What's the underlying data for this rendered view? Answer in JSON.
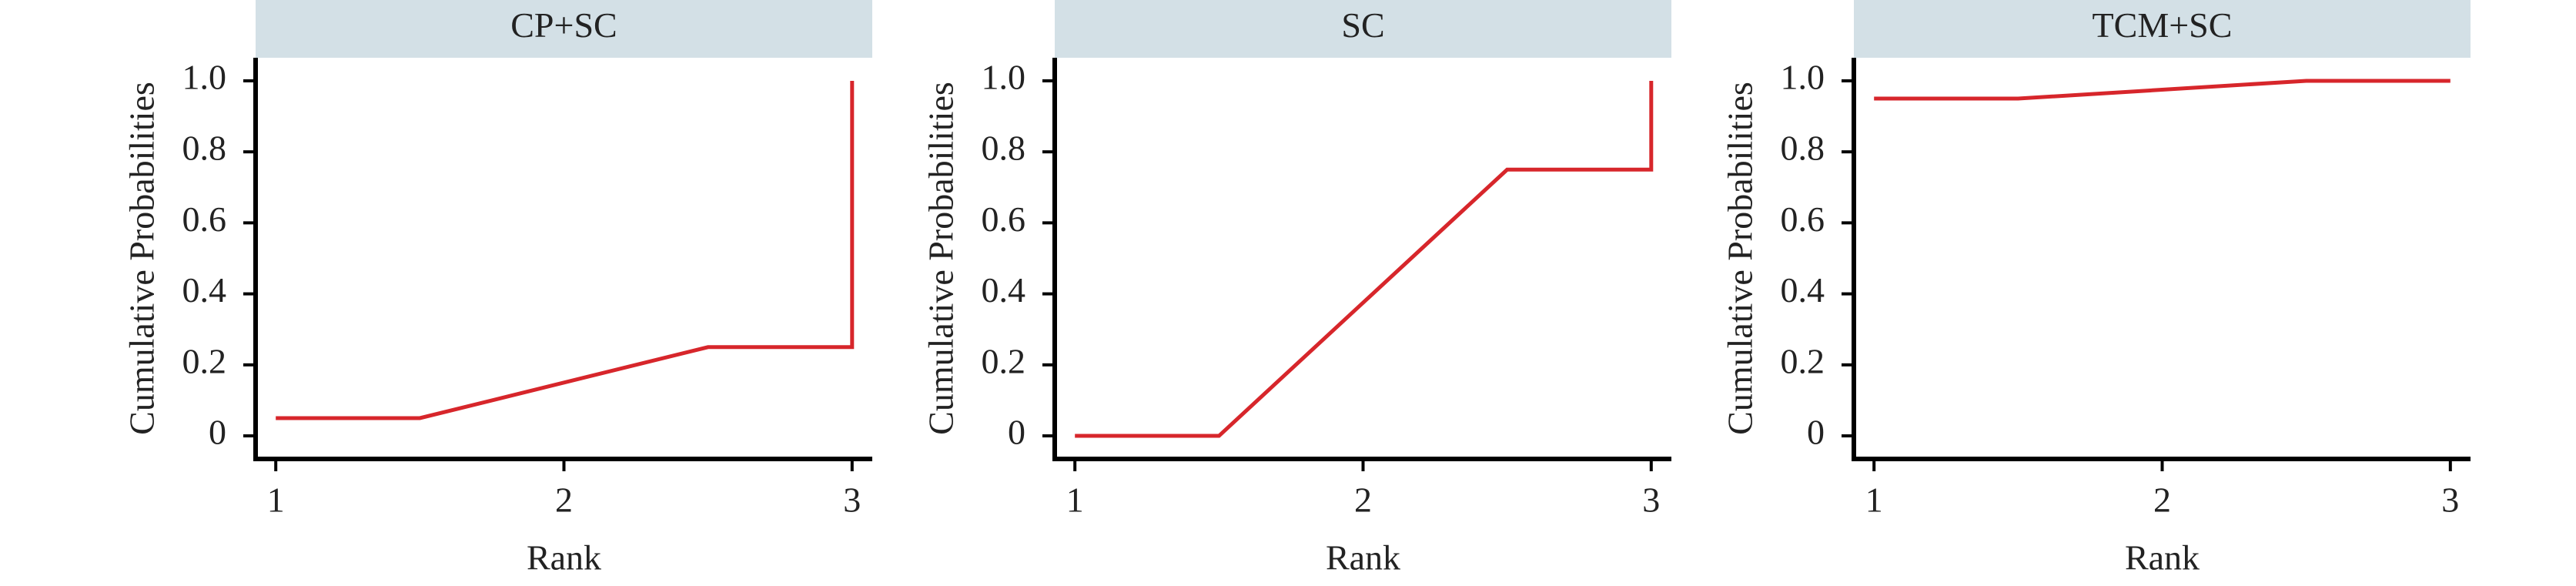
{
  "chart_data": [
    {
      "type": "line",
      "title": "CP+SC",
      "xlabel": "Rank",
      "ylabel": "Cumulative Probabilities",
      "x": [
        1,
        1.5,
        2.5,
        3,
        3
      ],
      "values": [
        0.05,
        0.05,
        0.25,
        0.25,
        1.0
      ],
      "color": "#d7262b",
      "xlim": [
        0.93,
        3.07
      ],
      "ylim": [
        -0.065,
        1.065
      ],
      "xticks": [
        1,
        2,
        3
      ],
      "yticks": [
        0,
        0.2,
        0.4,
        0.6,
        0.8,
        {
          "value": 1,
          "label": "1.0"
        }
      ],
      "grid": false
    },
    {
      "type": "line",
      "title": "SC",
      "xlabel": "Rank",
      "ylabel": "Cumulative Probabilities",
      "x": [
        1,
        1.5,
        2.5,
        3,
        3
      ],
      "values": [
        0,
        0,
        0.75,
        0.75,
        1.0
      ],
      "color": "#d7262b",
      "xlim": [
        0.93,
        3.07
      ],
      "ylim": [
        -0.065,
        1.065
      ],
      "xticks": [
        1,
        2,
        3
      ],
      "yticks": [
        0,
        0.2,
        0.4,
        0.6,
        0.8,
        {
          "value": 1,
          "label": "1.0"
        }
      ],
      "grid": false
    },
    {
      "type": "line",
      "title": "TCM+SC",
      "xlabel": "Rank",
      "ylabel": "Cumulative Probabilities",
      "x": [
        1,
        1.5,
        2.5,
        3
      ],
      "values": [
        0.95,
        0.95,
        1.0,
        1.0
      ],
      "color": "#d7262b",
      "xlim": [
        0.93,
        3.07
      ],
      "ylim": [
        -0.065,
        1.065
      ],
      "xticks": [
        1,
        2,
        3
      ],
      "yticks": [
        0,
        0.2,
        0.4,
        0.6,
        0.8,
        {
          "value": 1,
          "label": "1.0"
        }
      ],
      "grid": false
    }
  ]
}
